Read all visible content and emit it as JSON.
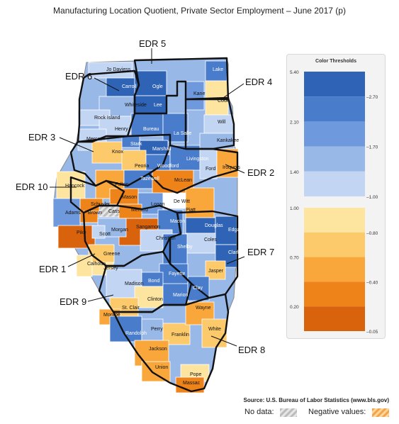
{
  "title": "Manufacturing Location Quotient, Private Sector Employment – June 2017 (p)",
  "source": "Source: U.S. Bureau of Labor Statistics (www.bls.gov)",
  "no_data_label": "No data:",
  "negative_values_label": "Negative values:",
  "legend": {
    "title": "Color Thresholds",
    "blue_scale": {
      "left_ticks": [
        "5.40",
        "2.10",
        "1.40"
      ],
      "right_ticks": [
        "2.70",
        "1.70",
        "1.00"
      ],
      "colors": [
        "#2f63b6",
        "#4a7ccc",
        "#6e99dd",
        "#98b8e8",
        "#c2d6f3"
      ]
    },
    "orange_scale": {
      "left_ticks": [
        "1.00",
        "0.70",
        "0.20"
      ],
      "right_ticks": [
        "0.80",
        "0.40",
        "0.05"
      ],
      "colors": [
        "#fde5a0",
        "#fcc96b",
        "#f9a63a",
        "#ee8419",
        "#d9620d"
      ]
    }
  },
  "colors": {
    "border": "#111111",
    "county_outline": "#ffffff",
    "no_data": "#bcbcbc",
    "negative_stripe": "#f6a24a"
  },
  "edr_labels": [
    "EDR 5",
    "EDR 6",
    "EDR 4",
    "EDR 3",
    "EDR 2",
    "EDR 10",
    "EDR 1",
    "EDR 7",
    "EDR 9",
    "EDR 8"
  ],
  "counties": [
    {
      "name": "Jo Daviess",
      "fill": "#c2d6f3"
    },
    {
      "name": "Carroll",
      "fill": "#2f63b6"
    },
    {
      "name": "Ogle",
      "fill": "#2f63b6"
    },
    {
      "name": "Lee",
      "fill": "#2f63b6"
    },
    {
      "name": "Whiteside",
      "fill": "#98b8e8"
    },
    {
      "name": "Rock Island",
      "fill": "#c2d6f3"
    },
    {
      "name": "Henry",
      "fill": "#c2d6f3"
    },
    {
      "name": "Bureau",
      "fill": "#4a7ccc"
    },
    {
      "name": "La Salle",
      "fill": "#4a7ccc"
    },
    {
      "name": "Lake",
      "fill": "#4a7ccc"
    },
    {
      "name": "Kane",
      "fill": "#6e99dd"
    },
    {
      "name": "Cook",
      "fill": "#fde5a0"
    },
    {
      "name": "Will",
      "fill": "#c2d6f3"
    },
    {
      "name": "Kankakee",
      "fill": "#98b8e8"
    },
    {
      "name": "Mercer",
      "fill": "#c2d6f3"
    },
    {
      "name": "Stark",
      "fill": "#4a7ccc"
    },
    {
      "name": "Marshall",
      "fill": "#2f63b6"
    },
    {
      "name": "Knox",
      "fill": "#fcc96b"
    },
    {
      "name": "Peoria",
      "fill": "#fcc96b"
    },
    {
      "name": "Woodford",
      "fill": "#4a7ccc"
    },
    {
      "name": "Livingston",
      "fill": "#4a7ccc"
    },
    {
      "name": "Ford",
      "fill": "#c2d6f3"
    },
    {
      "name": "Iroquois",
      "fill": "#f9a63a"
    },
    {
      "name": "Hancock",
      "fill": "#fde5a0"
    },
    {
      "name": "Fulton",
      "fill": "#f9a63a"
    },
    {
      "name": "Tazewell",
      "fill": "#4a7ccc"
    },
    {
      "name": "McLean",
      "fill": "#ee8419"
    },
    {
      "name": "Mason",
      "fill": "#ee8419"
    },
    {
      "name": "Logan",
      "fill": "#6e99dd"
    },
    {
      "name": "De Witt",
      "fill": "#ffffff"
    },
    {
      "name": "Piatt",
      "fill": "#f9a63a"
    },
    {
      "name": "Adams",
      "fill": "#6e99dd"
    },
    {
      "name": "Schuyler",
      "fill": "#ee8419"
    },
    {
      "name": "Brown",
      "fill": "#ee8419"
    },
    {
      "name": "Cass",
      "fill": "#bcbcbc"
    },
    {
      "name": "Menard",
      "fill": "#ee8419"
    },
    {
      "name": "Sangamon",
      "fill": "#d9620d"
    },
    {
      "name": "Macon",
      "fill": "#4a7ccc"
    },
    {
      "name": "Douglas",
      "fill": "#2f63b6"
    },
    {
      "name": "Edgar",
      "fill": "#2f63b6"
    },
    {
      "name": "Pike",
      "fill": "#d9620d"
    },
    {
      "name": "Morgan",
      "fill": "#98b8e8"
    },
    {
      "name": "Scott",
      "fill": "#c2d6f3"
    },
    {
      "name": "Christian",
      "fill": "#c2d6f3"
    },
    {
      "name": "Coles",
      "fill": "#c2d6f3"
    },
    {
      "name": "Clark",
      "fill": "#2f63b6"
    },
    {
      "name": "Shelby",
      "fill": "#4a7ccc"
    },
    {
      "name": "Greene",
      "fill": "#fcc96b"
    },
    {
      "name": "Calhoun",
      "fill": "#fde5a0"
    },
    {
      "name": "Jersey",
      "fill": "#fde5a0"
    },
    {
      "name": "Fayette",
      "fill": "#4a7ccc"
    },
    {
      "name": "Jasper",
      "fill": "#fcc96b"
    },
    {
      "name": "Madison",
      "fill": "#c2d6f3"
    },
    {
      "name": "Bond",
      "fill": "#4a7ccc"
    },
    {
      "name": "Clinton",
      "fill": "#fde5a0"
    },
    {
      "name": "Marion",
      "fill": "#4a7ccc"
    },
    {
      "name": "Clay",
      "fill": "#4a7ccc"
    },
    {
      "name": "St. Clair",
      "fill": "#fcc96b"
    },
    {
      "name": "Monroe",
      "fill": "#f9a63a"
    },
    {
      "name": "Randolph",
      "fill": "#4a7ccc"
    },
    {
      "name": "Perry",
      "fill": "#98b8e8"
    },
    {
      "name": "Franklin",
      "fill": "#fcc96b"
    },
    {
      "name": "Wayne",
      "fill": "#f9a63a"
    },
    {
      "name": "White",
      "fill": "#fcc96b"
    },
    {
      "name": "Jackson",
      "fill": "#f9a63a"
    },
    {
      "name": "Union",
      "fill": "#f9a63a"
    },
    {
      "name": "Pope",
      "fill": "#fde5a0"
    },
    {
      "name": "Massac",
      "fill": "#ee8419"
    }
  ]
}
